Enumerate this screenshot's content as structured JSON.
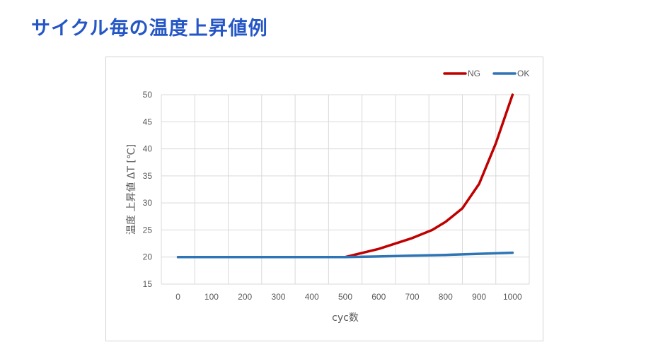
{
  "slide": {
    "title": "サイクル毎の温度上昇値例"
  },
  "chart_data": {
    "type": "line",
    "title": "",
    "xlabel": "cyc数",
    "ylabel": "温度 上昇値 ΔT [℃]",
    "xlim": [
      0,
      1000
    ],
    "ylim": [
      15,
      50
    ],
    "x_ticks": [
      "0",
      "100",
      "200",
      "300",
      "400",
      "500",
      "600",
      "700",
      "800",
      "900",
      "1000"
    ],
    "y_ticks": [
      "15",
      "20",
      "25",
      "30",
      "35",
      "40",
      "45",
      "50"
    ],
    "grid": true,
    "legend_position": "top-right",
    "series": [
      {
        "name": "NG",
        "color": "#c00000",
        "x": [
          0,
          500,
          600,
          700,
          760,
          800,
          850,
          900,
          950,
          1000
        ],
        "y": [
          20,
          20,
          21.5,
          23.5,
          25,
          26.5,
          29,
          33.5,
          41,
          50
        ]
      },
      {
        "name": "OK",
        "color": "#2e75b6",
        "x": [
          0,
          500,
          600,
          700,
          800,
          900,
          1000
        ],
        "y": [
          20,
          20,
          20.1,
          20.25,
          20.4,
          20.6,
          20.8
        ]
      }
    ]
  }
}
